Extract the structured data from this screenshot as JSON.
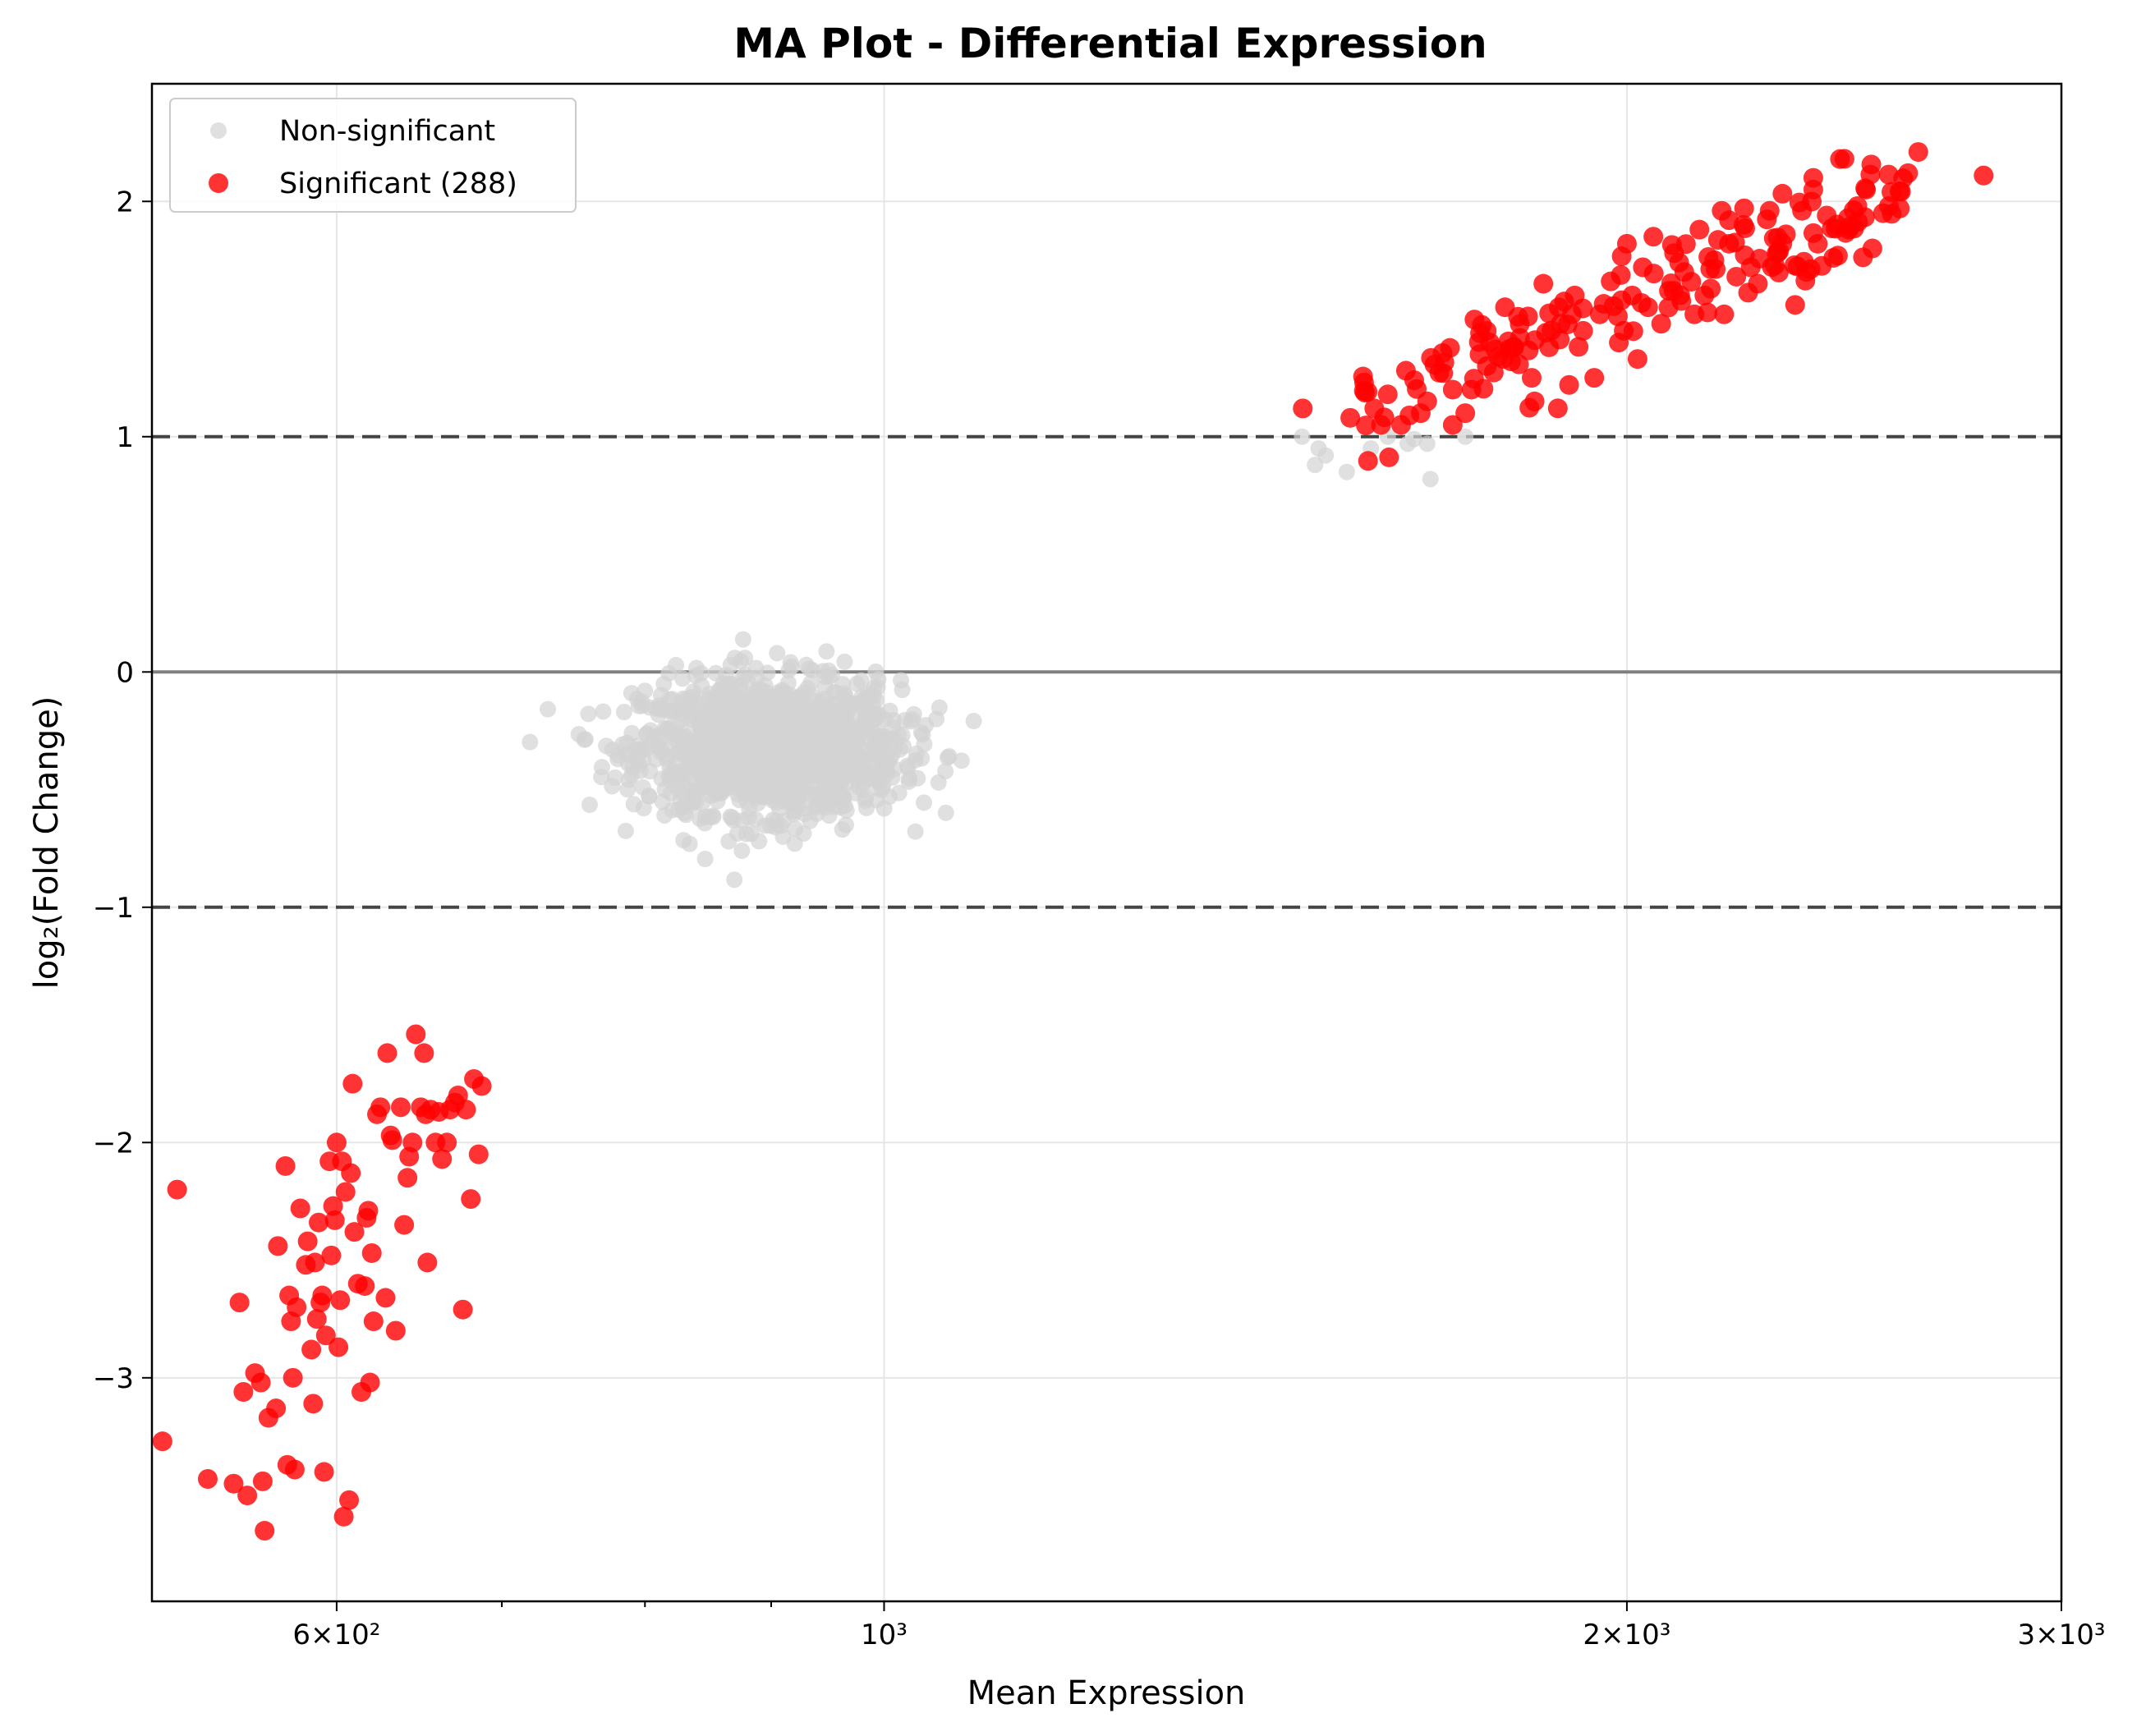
{
  "chart_data": {
    "type": "scatter",
    "title": "MA Plot - Differential Expression",
    "xlabel": "Mean Expression",
    "ylabel": "log₂(Fold Change)",
    "x_scale": "log",
    "xlim": [
      505,
      3000
    ],
    "ylim": [
      -3.95,
      2.5
    ],
    "x_ticks": [
      {
        "value": 600,
        "label": "6×10²"
      },
      {
        "value": 1000,
        "label": "10³"
      },
      {
        "value": 2000,
        "label": "2×10³"
      },
      {
        "value": 3000,
        "label": "3×10³"
      }
    ],
    "x_minor_ticks": [
      700,
      800,
      900
    ],
    "y_ticks": [
      -3,
      -2,
      -1,
      0,
      1,
      2
    ],
    "y_tick_labels": [
      "−3",
      "−2",
      "−1",
      "0",
      "1",
      "2"
    ],
    "grid": true,
    "legend_position": "upper-left",
    "reference_lines": [
      {
        "y": 0,
        "style": "solid",
        "color": "#808080"
      },
      {
        "y": 1,
        "style": "dashed",
        "color": "#444444"
      },
      {
        "y": -1,
        "style": "dashed",
        "color": "#444444"
      }
    ],
    "series": [
      {
        "name": "Non-significant",
        "color": "#d3d3d3",
        "center": [
          900,
          -0.32
        ],
        "note_visible_count": "dense cluster",
        "points": [
          [
            870,
            0.06
          ],
          [
            905,
            0.08
          ],
          [
            930,
            0.03
          ],
          [
            950,
            -0.02
          ],
          [
            975,
            -0.05
          ],
          [
            800,
            -0.08
          ],
          [
            790,
            -0.09
          ],
          [
            780,
            -0.37
          ],
          [
            815,
            -0.5
          ],
          [
            830,
            -0.6
          ],
          [
            865,
            -0.72
          ],
          [
            920,
            -0.73
          ],
          [
            910,
            -0.7
          ],
          [
            965,
            -0.65
          ],
          [
            1000,
            -0.58
          ],
          [
            1005,
            -0.53
          ],
          [
            1050,
            -0.2
          ],
          [
            1010,
            -0.32
          ],
          [
            990,
            -0.45
          ],
          [
            855,
            -0.2
          ],
          [
            840,
            -0.38
          ],
          [
            880,
            -0.55
          ],
          [
            895,
            -0.12
          ],
          [
            940,
            -0.44
          ],
          [
            960,
            -0.26
          ],
          [
            1477,
            1.0
          ],
          [
            1500,
            0.95
          ],
          [
            1495,
            0.88
          ],
          [
            1540,
            0.85
          ],
          [
            1575,
            0.95
          ],
          [
            1630,
            0.97
          ],
          [
            1665,
            0.82
          ],
          [
            1660,
            0.97
          ],
          [
            1720,
            1.0
          ],
          [
            1600,
            1.0
          ],
          [
            1510,
            0.92
          ],
          [
            1640,
            0.99
          ]
        ]
      },
      {
        "name": "Significant (288)",
        "color": "#ff0000",
        "groups": [
          {
            "x_range": [
              1475,
              2800
            ],
            "y_trend": [
              1.05,
              2.2
            ]
          },
          {
            "x_range": [
              505,
              690
            ],
            "y_trend": [
              -3.6,
              -1.55
            ]
          }
        ],
        "points": [
          [
            1478,
            1.12
          ],
          [
            1545,
            1.08
          ],
          [
            1565,
            1.23
          ],
          [
            1580,
            1.12
          ],
          [
            1600,
            1.18
          ],
          [
            1620,
            1.05
          ],
          [
            1640,
            1.24
          ],
          [
            1660,
            1.15
          ],
          [
            1685,
            1.27
          ],
          [
            1700,
            1.05
          ],
          [
            1720,
            1.1
          ],
          [
            1730,
            1.2
          ],
          [
            1755,
            1.3
          ],
          [
            1760,
            1.4
          ],
          [
            1785,
            1.55
          ],
          [
            1795,
            1.32
          ],
          [
            1810,
            1.42
          ],
          [
            1830,
            1.25
          ],
          [
            1835,
            1.15
          ],
          [
            1850,
            1.65
          ],
          [
            1860,
            1.38
          ],
          [
            1880,
            1.48
          ],
          [
            1895,
            1.22
          ],
          [
            1905,
            1.6
          ],
          [
            1920,
            1.45
          ],
          [
            1940,
            1.25
          ],
          [
            1950,
            1.52
          ],
          [
            1970,
            1.66
          ],
          [
            1985,
            1.4
          ],
          [
            2000,
            1.82
          ],
          [
            2010,
            1.6
          ],
          [
            2020,
            1.33
          ],
          [
            2030,
            1.72
          ],
          [
            2040,
            1.55
          ],
          [
            2050,
            1.85
          ],
          [
            2065,
            1.48
          ],
          [
            2080,
            1.62
          ],
          [
            2090,
            1.78
          ],
          [
            2110,
            1.7
          ],
          [
            2130,
            1.52
          ],
          [
            2140,
            1.88
          ],
          [
            2150,
            1.6
          ],
          [
            2170,
            1.75
          ],
          [
            2185,
            1.96
          ],
          [
            2190,
            1.52
          ],
          [
            2200,
            1.82
          ],
          [
            2215,
            1.68
          ],
          [
            2230,
            1.9
          ],
          [
            2245,
            1.72
          ],
          [
            2260,
            1.65
          ],
          [
            2285,
            1.96
          ],
          [
            2300,
            1.78
          ],
          [
            2320,
            1.86
          ],
          [
            2340,
            1.56
          ],
          [
            2355,
            1.96
          ],
          [
            2365,
            1.7
          ],
          [
            2380,
            2.05
          ],
          [
            2390,
            1.82
          ],
          [
            2410,
            1.94
          ],
          [
            2425,
            1.76
          ],
          [
            2440,
            2.18
          ],
          [
            2460,
            1.88
          ],
          [
            2480,
            1.98
          ],
          [
            2500,
            2.05
          ],
          [
            2515,
            1.8
          ],
          [
            2540,
            1.95
          ],
          [
            2560,
            2.04
          ],
          [
            2580,
            1.97
          ],
          [
            2600,
            2.12
          ],
          [
            2625,
            2.21
          ],
          [
            2790,
            2.11
          ],
          [
            2380,
            2.1
          ],
          [
            2200,
            1.92
          ],
          [
            2100,
            1.74
          ],
          [
            1990,
            1.58
          ],
          [
            1900,
            1.52
          ],
          [
            1800,
            1.38
          ],
          [
            1700,
            1.2
          ],
          [
            1650,
            1.1
          ],
          [
            1590,
            1.05
          ],
          [
            510,
            -3.27
          ],
          [
            517,
            -2.2
          ],
          [
            532,
            -3.43
          ],
          [
            545,
            -3.45
          ],
          [
            548,
            -2.68
          ],
          [
            550,
            -3.06
          ],
          [
            552,
            -3.5
          ],
          [
            556,
            -2.98
          ],
          [
            559,
            -3.02
          ],
          [
            560,
            -3.44
          ],
          [
            561,
            -3.65
          ],
          [
            563,
            -3.17
          ],
          [
            567,
            -3.13
          ],
          [
            568,
            -2.44
          ],
          [
            572,
            -2.1
          ],
          [
            573,
            -3.37
          ],
          [
            574,
            -2.65
          ],
          [
            575,
            -2.76
          ],
          [
            576,
            -3.0
          ],
          [
            577,
            -3.39
          ],
          [
            578,
            -2.7
          ],
          [
            580,
            -2.28
          ],
          [
            583,
            -2.52
          ],
          [
            584,
            -2.42
          ],
          [
            586,
            -2.88
          ],
          [
            587,
            -3.11
          ],
          [
            588,
            -2.51
          ],
          [
            589,
            -2.75
          ],
          [
            590,
            -2.34
          ],
          [
            591,
            -2.68
          ],
          [
            592,
            -2.65
          ],
          [
            593,
            -3.4
          ],
          [
            594,
            -2.82
          ],
          [
            596,
            -2.08
          ],
          [
            597,
            -2.48
          ],
          [
            598,
            -2.27
          ],
          [
            599,
            -2.33
          ],
          [
            600,
            -2.0
          ],
          [
            601,
            -2.87
          ],
          [
            602,
            -2.67
          ],
          [
            603,
            -2.08
          ],
          [
            604,
            -3.59
          ],
          [
            605,
            -2.21
          ],
          [
            607,
            -3.52
          ],
          [
            608,
            -2.13
          ],
          [
            609,
            -1.75
          ],
          [
            610,
            -2.38
          ],
          [
            612,
            -2.6
          ],
          [
            614,
            -3.06
          ],
          [
            616,
            -2.61
          ],
          [
            617,
            -2.32
          ],
          [
            618,
            -2.29
          ],
          [
            619,
            -3.02
          ],
          [
            620,
            -2.47
          ],
          [
            621,
            -2.76
          ],
          [
            623,
            -1.88
          ],
          [
            625,
            -1.85
          ],
          [
            628,
            -2.66
          ],
          [
            629,
            -1.62
          ],
          [
            631,
            -1.97
          ],
          [
            632,
            -1.99
          ],
          [
            634,
            -2.8
          ],
          [
            637,
            -1.85
          ],
          [
            639,
            -2.35
          ],
          [
            641,
            -2.15
          ],
          [
            642,
            -2.06
          ],
          [
            644,
            -2.0
          ],
          [
            646,
            -1.54
          ],
          [
            649,
            -1.85
          ],
          [
            651,
            -1.62
          ],
          [
            652,
            -1.88
          ],
          [
            653,
            -2.51
          ],
          [
            655,
            -1.86
          ],
          [
            658,
            -2.0
          ],
          [
            660,
            -1.87
          ],
          [
            662,
            -2.07
          ],
          [
            665,
            -2.0
          ],
          [
            667,
            -1.86
          ],
          [
            670,
            -1.83
          ],
          [
            672,
            -1.8
          ],
          [
            675,
            -2.71
          ],
          [
            677,
            -1.86
          ],
          [
            680,
            -2.24
          ],
          [
            682,
            -1.73
          ],
          [
            685,
            -2.05
          ],
          [
            687,
            -1.76
          ]
        ]
      }
    ]
  }
}
